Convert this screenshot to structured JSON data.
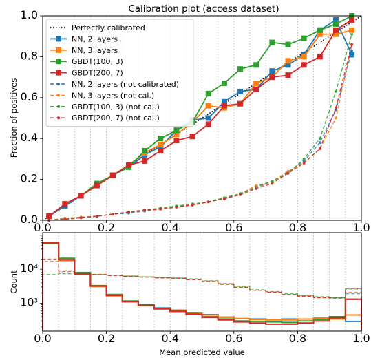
{
  "chart_data": [
    {
      "type": "line",
      "title": "Calibration plot (access dataset)",
      "xlabel": "",
      "ylabel": "Fraction of positives",
      "xlim": [
        0,
        1
      ],
      "ylim": [
        0,
        1
      ],
      "grid": "vertical dotted lines at bin edges",
      "legend_loc": "upper-left",
      "x_ticks": [
        "0.0",
        "0.2",
        "0.4",
        "0.6",
        "0.8",
        "1.0"
      ],
      "y_ticks": [
        "0.0",
        "0.2",
        "0.4",
        "0.6",
        "0.8",
        "1.0"
      ],
      "x": [
        0.02,
        0.07,
        0.12,
        0.17,
        0.22,
        0.27,
        0.32,
        0.37,
        0.42,
        0.47,
        0.52,
        0.57,
        0.62,
        0.67,
        0.72,
        0.77,
        0.82,
        0.87,
        0.92,
        0.97
      ],
      "reference": {
        "name": "Perfectly calibrated",
        "x": [
          0,
          1
        ],
        "y": [
          0,
          1
        ],
        "color": "#000000",
        "style": "dotted"
      },
      "series": [
        {
          "name": "NN, 2 layers",
          "color": "#1f77b4",
          "style": "solid",
          "marker": "square",
          "y": [
            0.02,
            0.07,
            0.12,
            0.17,
            0.22,
            0.26,
            0.32,
            0.36,
            0.44,
            0.49,
            0.5,
            0.58,
            0.63,
            0.64,
            0.73,
            0.76,
            0.81,
            0.93,
            0.98,
            0.81
          ]
        },
        {
          "name": "NN, 3 layers",
          "color": "#ff7f0e",
          "style": "solid",
          "marker": "square",
          "y": [
            0.02,
            0.08,
            0.12,
            0.17,
            0.22,
            0.27,
            0.33,
            0.37,
            0.42,
            0.48,
            0.56,
            0.55,
            0.57,
            0.67,
            0.7,
            0.78,
            0.8,
            0.91,
            0.91,
            0.93
          ]
        },
        {
          "name": "GBDT(100, 3)",
          "color": "#2ca02c",
          "style": "solid",
          "marker": "square",
          "y": [
            0.02,
            0.08,
            0.12,
            0.18,
            0.22,
            0.26,
            0.34,
            0.4,
            0.44,
            0.48,
            0.62,
            0.67,
            0.74,
            0.76,
            0.87,
            0.86,
            0.89,
            0.93,
            0.96,
            1.0
          ]
        },
        {
          "name": "GBDT(200, 7)",
          "color": "#d62728",
          "style": "solid",
          "marker": "square",
          "y": [
            0.02,
            0.08,
            0.12,
            0.17,
            0.22,
            0.27,
            0.29,
            0.34,
            0.39,
            0.41,
            0.47,
            0.56,
            0.57,
            0.64,
            0.7,
            0.71,
            0.76,
            0.8,
            0.93,
            0.98
          ]
        },
        {
          "name": "NN, 2 layers (not calibrated)",
          "color": "#1f77b4",
          "style": "dashed",
          "marker": "dot",
          "y": [
            0.0,
            0.01,
            0.015,
            0.02,
            0.03,
            0.035,
            0.045,
            0.055,
            0.065,
            0.075,
            0.09,
            0.105,
            0.13,
            0.165,
            0.19,
            0.235,
            0.29,
            0.38,
            0.54,
            0.83
          ]
        },
        {
          "name": "NN, 3 layers (not cal.)",
          "color": "#ff7f0e",
          "style": "dashed",
          "marker": "dot",
          "y": [
            0.0,
            0.01,
            0.015,
            0.02,
            0.03,
            0.04,
            0.05,
            0.055,
            0.065,
            0.075,
            0.09,
            0.11,
            0.13,
            0.17,
            0.19,
            0.24,
            0.28,
            0.35,
            0.5,
            0.86
          ]
        },
        {
          "name": "GBDT(100, 3) (not cal.)",
          "color": "#2ca02c",
          "style": "dashed",
          "marker": "dot",
          "y": [
            0.0,
            0.005,
            0.012,
            0.02,
            0.03,
            0.04,
            0.05,
            0.06,
            0.07,
            0.08,
            0.09,
            0.11,
            0.13,
            0.16,
            0.19,
            0.23,
            0.3,
            0.4,
            0.63,
            0.91
          ]
        },
        {
          "name": "GBDT(200, 7) (not cal.)",
          "color": "#d62728",
          "style": "dashed",
          "marker": "dot",
          "y": [
            0.0,
            0.005,
            0.012,
            0.02,
            0.03,
            0.04,
            0.05,
            0.055,
            0.065,
            0.075,
            0.09,
            0.105,
            0.125,
            0.155,
            0.18,
            0.23,
            0.28,
            0.35,
            0.55,
            0.86
          ]
        }
      ]
    },
    {
      "type": "histogram",
      "xlabel": "Mean predicted value",
      "ylabel": "Count",
      "xlim": [
        0,
        1
      ],
      "ylim": [
        150,
        120000
      ],
      "y_scale": "log",
      "grid": "vertical dotted lines at bin edges",
      "x_ticks": [
        "0.0",
        "0.2",
        "0.4",
        "0.6",
        "0.8",
        "1.0"
      ],
      "y_ticks": [
        {
          "value": 1000,
          "base": "10",
          "exp": "3"
        },
        {
          "value": 10000,
          "base": "10",
          "exp": "4"
        }
      ],
      "bin_edges": [
        0,
        0.05,
        0.1,
        0.15,
        0.2,
        0.25,
        0.3,
        0.35,
        0.4,
        0.45,
        0.5,
        0.55,
        0.6,
        0.65,
        0.7,
        0.75,
        0.8,
        0.85,
        0.9,
        0.95,
        1.0
      ],
      "series": [
        {
          "name": "NN, 2 layers",
          "color": "#1f77b4",
          "style": "solid",
          "counts": [
            60000,
            19000,
            7500,
            3200,
            1750,
            1150,
            900,
            720,
            620,
            530,
            460,
            390,
            350,
            340,
            330,
            340,
            340,
            360,
            390,
            290
          ]
        },
        {
          "name": "NN, 3 layers",
          "color": "#ff7f0e",
          "style": "solid",
          "counts": [
            60000,
            18000,
            7200,
            3100,
            1650,
            1100,
            850,
            700,
            600,
            520,
            450,
            380,
            350,
            330,
            320,
            320,
            340,
            350,
            340,
            450
          ]
        },
        {
          "name": "GBDT(100, 3)",
          "color": "#2ca02c",
          "style": "solid",
          "counts": [
            58000,
            21000,
            8000,
            3300,
            1800,
            1150,
            880,
            690,
            580,
            490,
            400,
            340,
            300,
            290,
            280,
            270,
            300,
            330,
            400,
            1300
          ]
        },
        {
          "name": "GBDT(200, 7)",
          "color": "#d62728",
          "style": "solid",
          "counts": [
            60000,
            19000,
            7300,
            3200,
            1700,
            1100,
            860,
            680,
            570,
            470,
            380,
            320,
            280,
            260,
            240,
            240,
            260,
            300,
            370,
            1300
          ]
        },
        {
          "name": "NN, 2 layers (not calibrated)",
          "color": "#1f77b4",
          "style": "dashed",
          "counts": [
            17000,
            8500,
            7500,
            7000,
            6600,
            6200,
            5900,
            5600,
            5400,
            5000,
            4300,
            3600,
            2900,
            2400,
            2100,
            1800,
            1650,
            1500,
            1450,
            1900
          ]
        },
        {
          "name": "NN, 3 layers (not cal.)",
          "color": "#ff7f0e",
          "style": "dashed",
          "counts": [
            17000,
            8700,
            7600,
            7100,
            6700,
            6300,
            6000,
            5700,
            5500,
            5100,
            4500,
            3700,
            3000,
            2400,
            2100,
            1800,
            1600,
            1450,
            1400,
            2100
          ]
        },
        {
          "name": "GBDT(100, 3) (not cal.)",
          "color": "#2ca02c",
          "style": "dashed",
          "counts": [
            7000,
            7400,
            7300,
            7000,
            6700,
            6300,
            6000,
            5700,
            5500,
            5200,
            4600,
            3800,
            3100,
            2500,
            2200,
            1900,
            1700,
            1550,
            1450,
            2600
          ]
        },
        {
          "name": "GBDT(200, 7) (not cal.)",
          "color": "#d62728",
          "style": "dashed",
          "counts": [
            20000,
            9000,
            7500,
            7000,
            6500,
            6100,
            5800,
            5500,
            5300,
            4900,
            4300,
            3600,
            2900,
            2400,
            2100,
            1800,
            1600,
            1450,
            1400,
            2700
          ]
        }
      ]
    }
  ]
}
